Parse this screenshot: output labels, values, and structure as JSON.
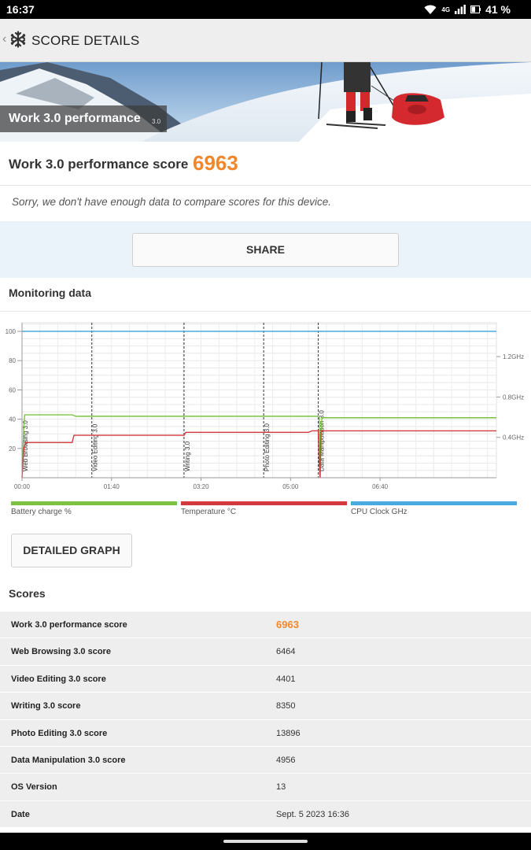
{
  "status_bar": {
    "time": "16:37",
    "network_label": "4G",
    "battery_percent": "41 %",
    "icons": [
      "wifi-icon",
      "signal-icon",
      "battery-icon"
    ]
  },
  "app_bar": {
    "title": "SCORE DETAILS",
    "back_icon": "chevron-left-icon",
    "logo_icon": "snowflake-icon"
  },
  "hero": {
    "title": "Work 3.0 performance",
    "version": "3.0"
  },
  "score_header": {
    "label": "Work 3.0 performance score",
    "value": "6963"
  },
  "compare_note": "Sorry, we don't have enough data to compare scores for this device.",
  "share_label": "SHARE",
  "monitoring": {
    "title": "Monitoring data",
    "detailed_button": "DETAILED GRAPH",
    "legend": [
      {
        "label": "Battery charge %",
        "color": "#7cc242"
      },
      {
        "label": "Temperature °C",
        "color": "#d33a3f"
      },
      {
        "label": "CPU Clock GHz",
        "color": "#4aa9e0"
      }
    ]
  },
  "chart_data": {
    "type": "line",
    "x_ticks": [
      "00:00",
      "01:40",
      "03:20",
      "05:00",
      "06:40"
    ],
    "x_range_seconds": [
      0,
      530
    ],
    "y_left_ticks": [
      "20",
      "40",
      "60",
      "80",
      "100"
    ],
    "y_left_range": [
      0,
      100
    ],
    "y_right_ticks": [
      "0.4GHz",
      "0.8GHz",
      "1.2GHz"
    ],
    "y_right_range_ghz": [
      0,
      1.45
    ],
    "grid": true,
    "phases": [
      {
        "name": "Web Browsing 3.0",
        "start": 0
      },
      {
        "name": "Video Editing 3.0",
        "start": 78
      },
      {
        "name": "Writing 3.0",
        "start": 181
      },
      {
        "name": "Photo Editing 3.0",
        "start": 270
      },
      {
        "name": "Data Manipulation 3.0",
        "start": 331
      }
    ],
    "series": [
      {
        "name": "Battery charge %",
        "color": "#7cc242",
        "x": [
          0,
          2,
          3,
          56,
          60,
          78,
          270,
          330,
          332,
          333,
          335,
          530
        ],
        "y": [
          0,
          35,
          43,
          43,
          42,
          42,
          42,
          42,
          41,
          0,
          41,
          41
        ]
      },
      {
        "name": "Temperature °C",
        "color": "#d33a3f",
        "x": [
          0,
          2,
          4,
          56,
          58,
          181,
          183,
          320,
          324,
          331,
          332,
          333,
          334,
          530
        ],
        "y": [
          0,
          20,
          24,
          24,
          29,
          29,
          31,
          31,
          32,
          32,
          10,
          0,
          32,
          32
        ]
      },
      {
        "name": "CPU Clock GHz",
        "color": "#4aa9e0",
        "x": [
          0,
          530
        ],
        "y": [
          1.45,
          1.45
        ]
      }
    ]
  },
  "scores": {
    "title": "Scores",
    "rows": [
      {
        "label": "Work 3.0 performance score",
        "value": "6963"
      },
      {
        "label": "Web Browsing 3.0 score",
        "value": "6464"
      },
      {
        "label": "Video Editing 3.0 score",
        "value": "4401"
      },
      {
        "label": "Writing 3.0 score",
        "value": "8350"
      },
      {
        "label": "Photo Editing 3.0 score",
        "value": "13896"
      },
      {
        "label": "Data Manipulation 3.0 score",
        "value": "4956"
      },
      {
        "label": "OS Version",
        "value": "13"
      },
      {
        "label": "Date",
        "value": "Sept. 5 2023 16:36"
      }
    ]
  }
}
